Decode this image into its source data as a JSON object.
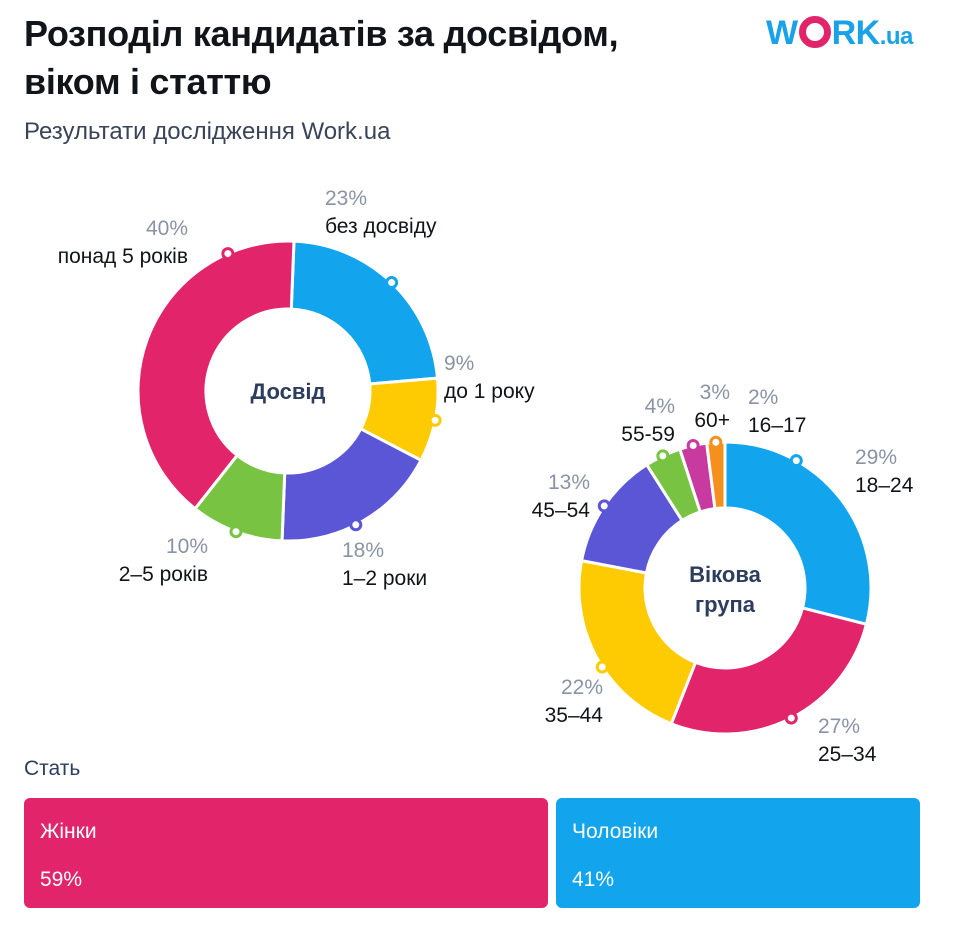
{
  "header": {
    "title": "Розподіл кандидатів за досвідом, віком і статтю",
    "subtitle": "Результати дослідження Work.ua",
    "logo": {
      "text_main": "W",
      "text_after": "RK",
      "text_domain": ".ua",
      "brand_color": "#1aa2e8",
      "accent_color": "#e2246a"
    }
  },
  "chart_data": [
    {
      "type": "pie",
      "center_label": [
        "Досвід"
      ],
      "slices": [
        {
          "label": "без досвіду",
          "pct_label": "23%",
          "value": 23,
          "color": "#12a4ec"
        },
        {
          "label": "до 1 року",
          "pct_label": "9%",
          "value": 9,
          "color": "#fecb02"
        },
        {
          "label": "1–2 роки",
          "pct_label": "18%",
          "value": 18,
          "color": "#5b56d6"
        },
        {
          "label": "2–5 років",
          "pct_label": "10%",
          "value": 10,
          "color": "#78c442"
        },
        {
          "label": "понад 5 років",
          "pct_label": "40%",
          "value": 40,
          "color": "#e2246a"
        }
      ]
    },
    {
      "type": "pie",
      "center_label": [
        "Вікова",
        "група"
      ],
      "slices": [
        {
          "label": "18–24",
          "pct_label": "29%",
          "value": 29,
          "color": "#12a4ec"
        },
        {
          "label": "25–34",
          "pct_label": "27%",
          "value": 27,
          "color": "#e2246a"
        },
        {
          "label": "35–44",
          "pct_label": "22%",
          "value": 22,
          "color": "#fecb02"
        },
        {
          "label": "45–54",
          "pct_label": "13%",
          "value": 13,
          "color": "#5b56d6"
        },
        {
          "label": "55-59",
          "pct_label": "4%",
          "value": 4,
          "color": "#78c442"
        },
        {
          "label": "60+",
          "pct_label": "3%",
          "value": 3,
          "color": "#c93aa0"
        },
        {
          "label": "16–17",
          "pct_label": "2%",
          "value": 2,
          "color": "#f5901e"
        }
      ]
    }
  ],
  "gender": {
    "title": "Стать",
    "items": [
      {
        "label": "Жінки",
        "pct_label": "59%",
        "value": 59,
        "color": "#e2246a"
      },
      {
        "label": "Чоловіки",
        "pct_label": "41%",
        "value": 41,
        "color": "#12a4ec"
      }
    ]
  }
}
